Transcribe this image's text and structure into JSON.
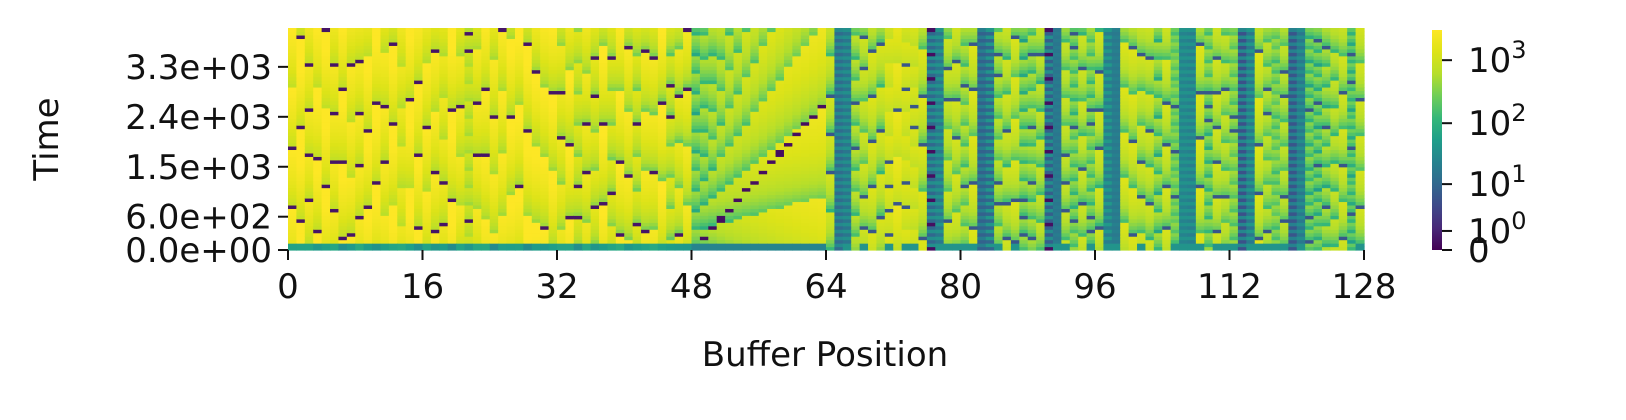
{
  "chart_data": {
    "type": "heatmap",
    "xlabel": "Buffer Position",
    "ylabel": "Time",
    "xlim": [
      0,
      128
    ],
    "ylim": [
      0,
      4000
    ],
    "x_ticks": [
      0,
      16,
      32,
      48,
      64,
      80,
      96,
      112,
      128
    ],
    "x_tick_labels": [
      "0",
      "16",
      "32",
      "48",
      "64",
      "80",
      "96",
      "112",
      "128"
    ],
    "y_ticks": [
      0,
      600,
      1500,
      2400,
      3300
    ],
    "y_tick_labels": [
      "0.0e+00",
      "6.0e+02",
      "1.5e+03",
      "2.4e+03",
      "3.3e+03"
    ],
    "colormap": "viridis",
    "color_scale": "symlog",
    "colorbar": {
      "ticks": [
        0,
        1,
        10,
        100,
        1000
      ],
      "tick_labels": [
        {
          "base": "0",
          "exp": ""
        },
        {
          "base": "10",
          "exp": "0"
        },
        {
          "base": "10",
          "exp": "1"
        },
        {
          "base": "10",
          "exp": "2"
        },
        {
          "base": "10",
          "exp": "3"
        }
      ],
      "vmax": 3000
    },
    "grid": false,
    "regions": [
      {
        "x_range": [
          0,
          48
        ],
        "pattern": "sawtooth age counters with diagonal reset streaks",
        "value_range": [
          0,
          2500
        ]
      },
      {
        "x_range": [
          48,
          64
        ],
        "pattern": "fan of diagonal reset lines growing with time",
        "value_range": [
          0,
          1500
        ]
      },
      {
        "x_range": [
          64,
          128
        ],
        "pattern": "banded columns with frequent resets and dark low-value streaks",
        "value_range": [
          0,
          1500
        ]
      }
    ],
    "low_value_columns": [
      65,
      76,
      82,
      90,
      97,
      106,
      113,
      119
    ]
  }
}
